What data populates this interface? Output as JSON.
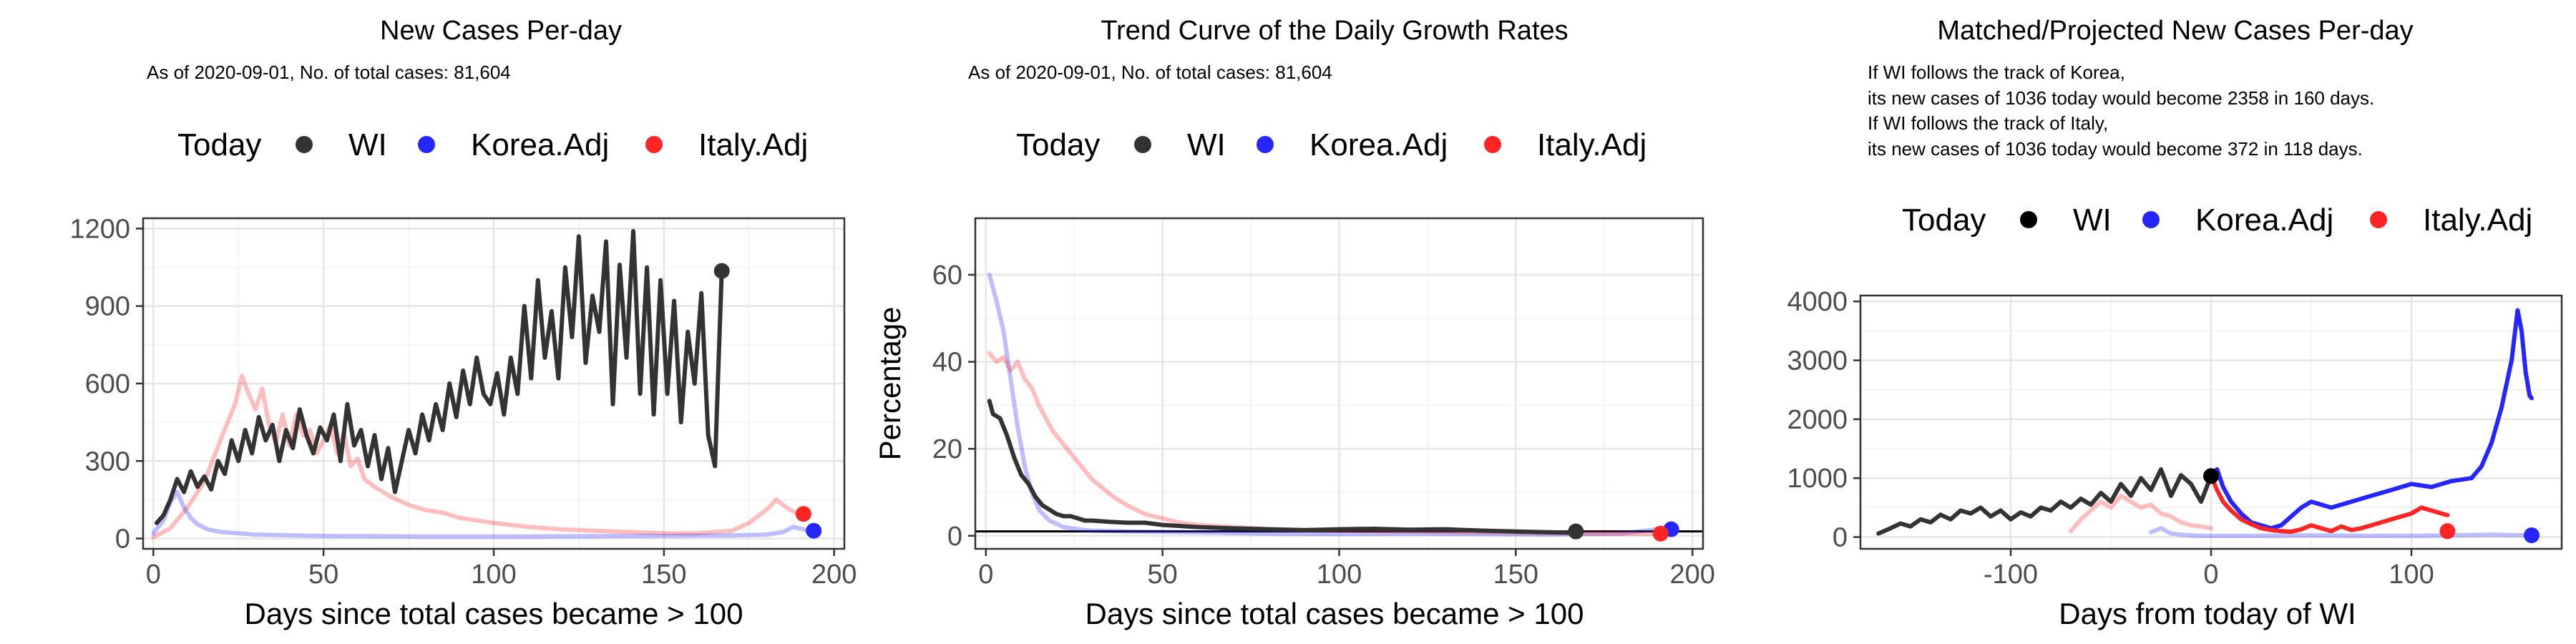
{
  "colors": {
    "WI": "#333333",
    "Korea.Adj": "#2525ff",
    "Italy.Adj": "#ff2525",
    "Today": "#000000",
    "panel_border": "#333333",
    "grid_major": "#e6e6e6",
    "grid_minor": "#f2f2f2",
    "zero_line": "#000000"
  },
  "chart_data": [
    {
      "type": "line",
      "title": "New Cases Per-day",
      "subtitle": "As of 2020-09-01, No. of total cases: 81,604",
      "xlabel": "Days since total cases became > 100",
      "ylabel": "",
      "xlim": [
        -3,
        203
      ],
      "ylim": [
        -40,
        1240
      ],
      "xticks": [
        0,
        50,
        100,
        150,
        200
      ],
      "yticks": [
        0,
        300,
        600,
        900,
        1200
      ],
      "grid": true,
      "legend": {
        "position": "top",
        "title": "Today",
        "entries": [
          {
            "name": "WI",
            "color_key": "WI"
          },
          {
            "name": "Korea.Adj",
            "color_key": "Korea.Adj"
          },
          {
            "name": "Italy.Adj",
            "color_key": "Italy.Adj"
          }
        ]
      },
      "series": [
        {
          "name": "Italy.Adj",
          "alpha": 0.3,
          "x": [
            0,
            5,
            10,
            15,
            20,
            24,
            26,
            28,
            30,
            32,
            34,
            36,
            38,
            40,
            42,
            44,
            46,
            48,
            50,
            52,
            54,
            56,
            58,
            60,
            62,
            65,
            70,
            75,
            80,
            85,
            90,
            95,
            100,
            110,
            120,
            130,
            140,
            150,
            160,
            170,
            175,
            180,
            183,
            186,
            190
          ],
          "y": [
            5,
            40,
            120,
            220,
            390,
            520,
            630,
            560,
            500,
            580,
            440,
            370,
            480,
            360,
            480,
            400,
            420,
            330,
            380,
            440,
            330,
            410,
            280,
            310,
            230,
            200,
            160,
            130,
            110,
            100,
            80,
            70,
            60,
            45,
            35,
            30,
            25,
            20,
            20,
            30,
            60,
            110,
            150,
            120,
            90
          ]
        },
        {
          "name": "Korea.Adj",
          "alpha": 0.3,
          "x": [
            0,
            3,
            5,
            7,
            9,
            11,
            13,
            16,
            20,
            30,
            50,
            80,
            110,
            140,
            170,
            180,
            185,
            188,
            191,
            193
          ],
          "y": [
            20,
            70,
            140,
            180,
            120,
            80,
            55,
            35,
            25,
            15,
            10,
            8,
            8,
            10,
            12,
            15,
            25,
            45,
            35,
            30
          ]
        },
        {
          "name": "WI",
          "alpha": 1,
          "x": [
            1,
            3,
            5,
            7,
            9,
            11,
            13,
            15,
            17,
            19,
            21,
            23,
            25,
            27,
            29,
            31,
            33,
            35,
            37,
            39,
            41,
            43,
            45,
            47,
            49,
            51,
            53,
            55,
            57,
            59,
            61,
            63,
            65,
            67,
            69,
            71,
            73,
            75,
            77,
            79,
            81,
            83,
            85,
            87,
            89,
            91,
            93,
            95,
            97,
            99,
            101,
            103,
            105,
            107,
            109,
            111,
            113,
            115,
            117,
            119,
            121,
            123,
            125,
            127,
            129,
            131,
            133,
            135,
            137,
            139,
            141,
            143,
            145,
            147,
            149,
            151,
            153,
            155,
            157,
            159,
            161,
            163,
            165,
            167
          ],
          "y": [
            60,
            90,
            150,
            230,
            180,
            260,
            200,
            240,
            190,
            300,
            250,
            380,
            300,
            420,
            330,
            470,
            380,
            440,
            300,
            420,
            350,
            500,
            400,
            330,
            430,
            380,
            480,
            300,
            520,
            360,
            420,
            280,
            400,
            230,
            350,
            180,
            300,
            420,
            330,
            480,
            380,
            520,
            420,
            600,
            470,
            650,
            520,
            700,
            560,
            520,
            640,
            480,
            700,
            560,
            900,
            620,
            1000,
            700,
            880,
            620,
            1050,
            780,
            1170,
            680,
            940,
            800,
            1150,
            520,
            1060,
            700,
            1190,
            560,
            1050,
            480,
            1000,
            560,
            920,
            450,
            800,
            600,
            950,
            400,
            280,
            1040
          ]
        }
      ],
      "today_points": [
        {
          "series": "WI",
          "x": 167,
          "y": 1036
        },
        {
          "series": "Korea.Adj",
          "x": 194,
          "y": 30
        },
        {
          "series": "Italy.Adj",
          "x": 191,
          "y": 95
        }
      ]
    },
    {
      "type": "line",
      "title": "Trend Curve of the Daily Growth Rates",
      "subtitle": "As of 2020-09-01, No. of total cases: 81,604",
      "xlabel": "Days since total cases became > 100",
      "ylabel": "Percentage",
      "xlim": [
        -3,
        203
      ],
      "ylim": [
        -3,
        73
      ],
      "xticks": [
        0,
        50,
        100,
        150,
        200
      ],
      "yticks": [
        0,
        20,
        40,
        60
      ],
      "grid": true,
      "hline": 1,
      "legend": {
        "position": "top",
        "title": "Today",
        "entries": [
          {
            "name": "WI",
            "color_key": "WI"
          },
          {
            "name": "Korea.Adj",
            "color_key": "Korea.Adj"
          },
          {
            "name": "Italy.Adj",
            "color_key": "Italy.Adj"
          }
        ]
      },
      "series": [
        {
          "name": "Korea.Adj",
          "alpha": 0.3,
          "x": [
            1,
            3,
            5,
            7,
            9,
            11,
            13,
            15,
            18,
            22,
            26,
            30,
            40,
            60,
            80,
            100,
            120,
            140,
            160,
            180,
            190,
            194
          ],
          "y": [
            60,
            54,
            47,
            36,
            25,
            16,
            10,
            6,
            3.5,
            2,
            1.5,
            1.2,
            1,
            0.8,
            0.5,
            0.4,
            0.5,
            0.4,
            0.3,
            0.5,
            1.5,
            1.2
          ]
        },
        {
          "name": "Italy.Adj",
          "alpha": 0.3,
          "x": [
            1,
            3,
            5,
            7,
            9,
            11,
            13,
            15,
            17,
            19,
            21,
            23,
            25,
            27,
            30,
            33,
            36,
            40,
            45,
            50,
            55,
            60,
            70,
            80,
            100,
            120,
            140,
            160,
            180,
            190
          ],
          "y": [
            42,
            40,
            41,
            38,
            40,
            36,
            34,
            30,
            27,
            24,
            22,
            20,
            18,
            16,
            13,
            11,
            9,
            7,
            5,
            4,
            3,
            2.5,
            2,
            1.5,
            1.2,
            1,
            0.8,
            0.6,
            0.5,
            0.4
          ]
        },
        {
          "name": "WI",
          "alpha": 1,
          "x": [
            1,
            2,
            4,
            6,
            8,
            10,
            12,
            14,
            16,
            18,
            20,
            22,
            24,
            26,
            28,
            30,
            35,
            40,
            45,
            50,
            60,
            70,
            80,
            90,
            100,
            110,
            120,
            130,
            140,
            150,
            160,
            167
          ],
          "y": [
            31,
            28,
            27,
            23,
            18,
            14,
            12,
            9,
            7,
            6,
            5,
            4.5,
            4.5,
            4,
            3.5,
            3.5,
            3.2,
            3,
            3,
            2.5,
            2,
            1.7,
            1.5,
            1.3,
            1.5,
            1.6,
            1.4,
            1.5,
            1.2,
            1,
            0.8,
            0.7
          ]
        }
      ],
      "today_points": [
        {
          "series": "WI",
          "x": 167,
          "y": 1
        },
        {
          "series": "Korea.Adj",
          "x": 194,
          "y": 1.5
        },
        {
          "series": "Italy.Adj",
          "x": 191,
          "y": 0.5
        }
      ]
    },
    {
      "type": "line",
      "title": "Matched/Projected New Cases Per-day",
      "subtitle": "",
      "annotations": [
        "If WI follows the track of Korea,",
        "its new cases of 1036 today would become 2358 in 160 days.",
        "If WI follows the track of Italy,",
        "its new cases of 1036 today would become 372 in 118 days."
      ],
      "xlabel": "Days from today of WI",
      "ylabel": "",
      "xlim": [
        -175,
        175
      ],
      "ylim": [
        -200,
        4100
      ],
      "xticks": [
        -100,
        0,
        100
      ],
      "yticks": [
        0,
        1000,
        2000,
        3000,
        4000
      ],
      "grid": true,
      "legend": {
        "position": "top",
        "title": "Today",
        "entries": [
          {
            "name": "WI",
            "color_key": "Today"
          },
          {
            "name": "Korea.Adj",
            "color_key": "Korea.Adj"
          },
          {
            "name": "Italy.Adj",
            "color_key": "Italy.Adj"
          }
        ]
      },
      "series": [
        {
          "name": "Korea.Adj (history)",
          "alpha": 0.3,
          "color_key": "Korea.Adj",
          "x": [
            -30,
            -25,
            -20,
            -15,
            -10,
            -5,
            0,
            20,
            50,
            80,
            110,
            140,
            160
          ],
          "y": [
            80,
            150,
            60,
            40,
            30,
            20,
            20,
            20,
            30,
            20,
            25,
            40,
            30
          ]
        },
        {
          "name": "Italy.Adj (history)",
          "alpha": 0.3,
          "color_key": "Italy.Adj",
          "x": [
            -70,
            -65,
            -60,
            -55,
            -50,
            -45,
            -40,
            -35,
            -30,
            -25,
            -20,
            -15,
            -10,
            -5,
            0
          ],
          "y": [
            100,
            300,
            450,
            600,
            500,
            700,
            600,
            500,
            550,
            400,
            350,
            250,
            200,
            180,
            150
          ]
        },
        {
          "name": "WI",
          "alpha": 1,
          "color_key": "WI",
          "x": [
            -166,
            -160,
            -155,
            -150,
            -145,
            -140,
            -135,
            -130,
            -125,
            -120,
            -115,
            -110,
            -105,
            -100,
            -95,
            -90,
            -85,
            -80,
            -75,
            -70,
            -65,
            -60,
            -55,
            -50,
            -45,
            -40,
            -35,
            -30,
            -25,
            -20,
            -15,
            -10,
            -5,
            0
          ],
          "y": [
            60,
            150,
            230,
            180,
            300,
            250,
            380,
            300,
            450,
            400,
            500,
            350,
            450,
            300,
            420,
            350,
            500,
            450,
            600,
            500,
            650,
            550,
            750,
            600,
            900,
            700,
            1000,
            800,
            1150,
            700,
            1050,
            900,
            600,
            1036
          ]
        },
        {
          "name": "Korea.Adj",
          "alpha": 1,
          "color_key": "Korea.Adj",
          "x": [
            0,
            3,
            6,
            10,
            15,
            20,
            25,
            30,
            35,
            40,
            45,
            50,
            55,
            60,
            70,
            80,
            90,
            100,
            110,
            120,
            130,
            135,
            140,
            145,
            150,
            153,
            155,
            157,
            159,
            160
          ],
          "y": [
            1036,
            1150,
            850,
            600,
            400,
            250,
            200,
            150,
            200,
            350,
            500,
            600,
            550,
            500,
            600,
            700,
            800,
            900,
            850,
            950,
            1000,
            1200,
            1600,
            2200,
            3000,
            3850,
            3500,
            2800,
            2400,
            2358
          ]
        },
        {
          "name": "Italy.Adj",
          "alpha": 1,
          "color_key": "Italy.Adj",
          "x": [
            0,
            3,
            6,
            10,
            15,
            20,
            25,
            30,
            35,
            40,
            45,
            50,
            55,
            60,
            65,
            70,
            75,
            80,
            85,
            90,
            95,
            100,
            105,
            110,
            115,
            118
          ],
          "y": [
            1036,
            800,
            600,
            450,
            300,
            220,
            150,
            120,
            100,
            90,
            130,
            200,
            150,
            100,
            180,
            120,
            150,
            200,
            250,
            300,
            350,
            400,
            500,
            450,
            400,
            372
          ]
        }
      ],
      "today_points": [
        {
          "series": "WI",
          "x": 0,
          "y": 1036,
          "color_key": "Today"
        },
        {
          "series": "Korea.Adj",
          "x": 160,
          "y": 30,
          "color_key": "Korea.Adj"
        },
        {
          "series": "Italy.Adj",
          "x": 118,
          "y": 100,
          "color_key": "Italy.Adj"
        }
      ]
    }
  ]
}
